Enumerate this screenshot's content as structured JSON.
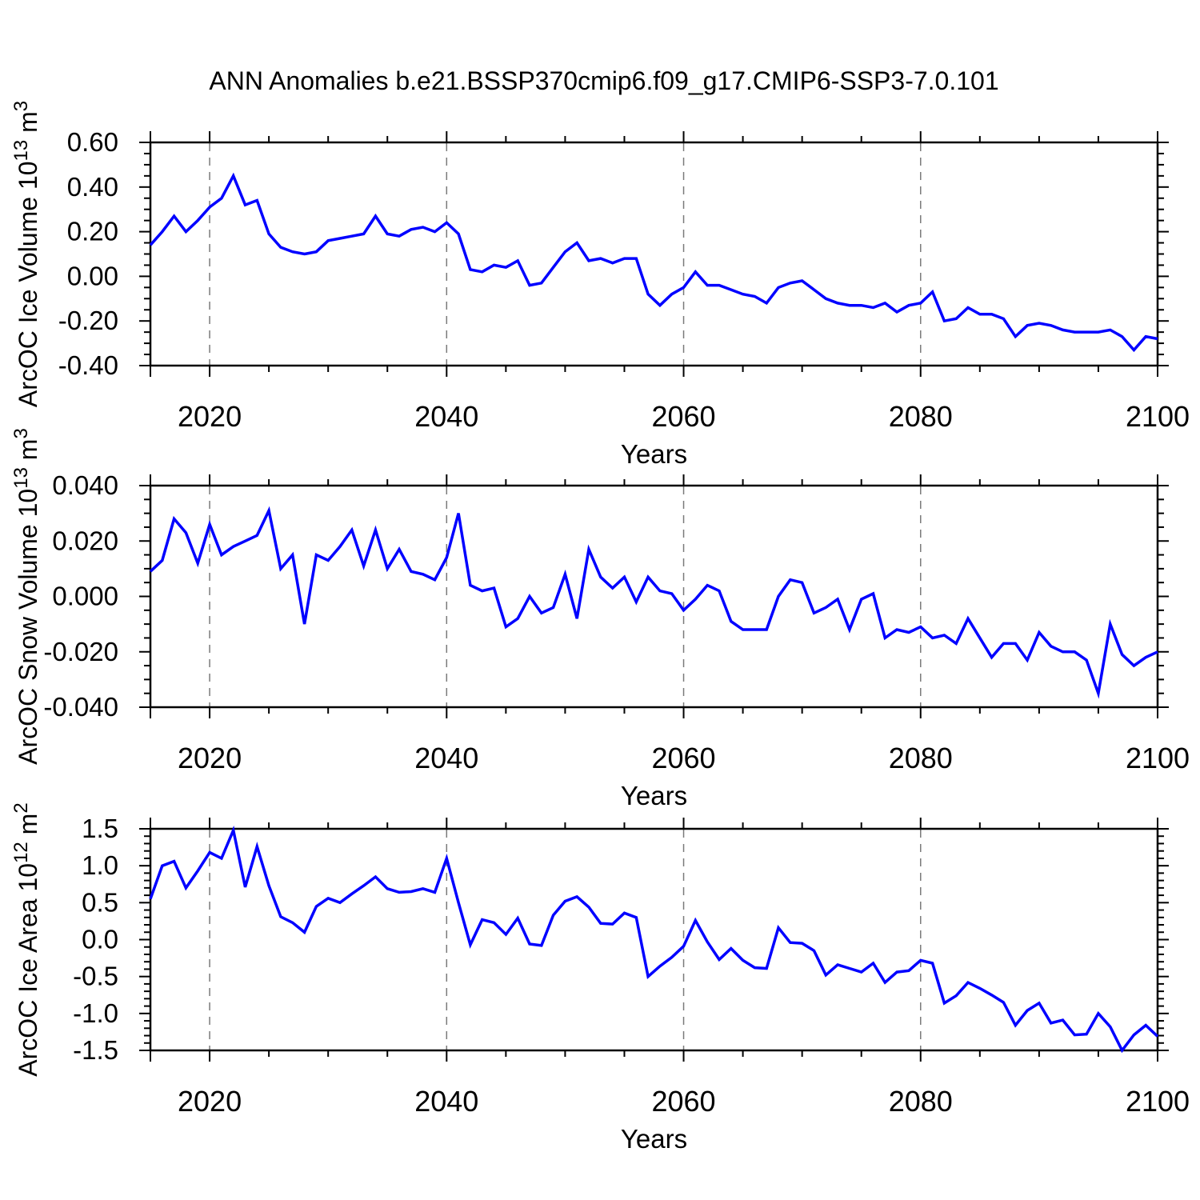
{
  "title": "ANN Anomalies b.e21.BSSP370cmip6.f09_g17.CMIP6-SSP3-7.0.101",
  "style": {
    "background": "#ffffff",
    "line_color": "#0000ff",
    "axis_color": "#000000",
    "grid_color": "#7a7a7a"
  },
  "chart_data": [
    {
      "type": "line",
      "panel": "ice-volume",
      "ylabel_plain": "ArcOC Ice Volume 10^13 m^3",
      "ylabel_segments": [
        {
          "t": "ArcOC Ice Volume 10"
        },
        {
          "t": "13",
          "sup": true
        },
        {
          "t": " m"
        },
        {
          "t": "3",
          "sup": true
        }
      ],
      "xlabel": "Years",
      "x_start": 2015,
      "x_end": 2100,
      "ylim": [
        -0.4,
        0.6
      ],
      "ytick_major": 0.2,
      "ytick_minor": 0.05,
      "ytick_decimals": 2,
      "xticks_labeled": [
        2020,
        2040,
        2060,
        2080,
        2100
      ],
      "xtick_minor_step": 5,
      "gridlines_x": [
        2020,
        2040,
        2060,
        2080
      ],
      "grid_on": true,
      "legend": "none",
      "values": [
        0.14,
        0.2,
        0.27,
        0.2,
        0.25,
        0.31,
        0.35,
        0.45,
        0.32,
        0.34,
        0.19,
        0.13,
        0.11,
        0.1,
        0.11,
        0.16,
        0.17,
        0.18,
        0.19,
        0.27,
        0.19,
        0.18,
        0.21,
        0.22,
        0.2,
        0.24,
        0.19,
        0.03,
        0.02,
        0.05,
        0.04,
        0.07,
        -0.04,
        -0.03,
        0.04,
        0.11,
        0.15,
        0.07,
        0.08,
        0.06,
        0.08,
        0.08,
        -0.08,
        -0.13,
        -0.08,
        -0.05,
        0.02,
        -0.04,
        -0.04,
        -0.06,
        -0.08,
        -0.09,
        -0.12,
        -0.05,
        -0.03,
        -0.02,
        -0.06,
        -0.1,
        -0.12,
        -0.13,
        -0.13,
        -0.14,
        -0.12,
        -0.16,
        -0.13,
        -0.12,
        -0.07,
        -0.2,
        -0.19,
        -0.14,
        -0.17,
        -0.17,
        -0.19,
        -0.27,
        -0.22,
        -0.21,
        -0.22,
        -0.24,
        -0.25,
        -0.25,
        -0.25,
        -0.24,
        -0.27,
        -0.33,
        -0.27,
        -0.28
      ]
    },
    {
      "type": "line",
      "panel": "snow-volume",
      "ylabel_plain": "ArcOC Snow Volume 10^13 m^3",
      "ylabel_segments": [
        {
          "t": "ArcOC Snow Volume 10"
        },
        {
          "t": "13",
          "sup": true
        },
        {
          "t": " m"
        },
        {
          "t": "3",
          "sup": true
        }
      ],
      "xlabel": "Years",
      "x_start": 2015,
      "x_end": 2100,
      "ylim": [
        -0.04,
        0.04
      ],
      "ytick_major": 0.02,
      "ytick_minor": 0.005,
      "ytick_decimals": 3,
      "xticks_labeled": [
        2020,
        2040,
        2060,
        2080,
        2100
      ],
      "xtick_minor_step": 5,
      "gridlines_x": [
        2020,
        2040,
        2060,
        2080
      ],
      "grid_on": true,
      "legend": "none",
      "values": [
        0.009,
        0.013,
        0.028,
        0.023,
        0.012,
        0.026,
        0.015,
        0.018,
        0.02,
        0.022,
        0.031,
        0.01,
        0.015,
        -0.01,
        0.015,
        0.013,
        0.018,
        0.024,
        0.011,
        0.024,
        0.01,
        0.017,
        0.009,
        0.008,
        0.006,
        0.014,
        0.03,
        0.004,
        0.002,
        0.003,
        -0.011,
        -0.008,
        0.0,
        -0.006,
        -0.004,
        0.008,
        -0.008,
        0.017,
        0.007,
        0.003,
        0.007,
        -0.002,
        0.007,
        0.002,
        0.001,
        -0.005,
        -0.001,
        0.004,
        0.002,
        -0.009,
        -0.012,
        -0.012,
        -0.012,
        0.0,
        0.006,
        0.005,
        -0.006,
        -0.004,
        -0.001,
        -0.012,
        -0.001,
        0.001,
        -0.015,
        -0.012,
        -0.013,
        -0.011,
        -0.015,
        -0.014,
        -0.017,
        -0.008,
        -0.015,
        -0.022,
        -0.017,
        -0.017,
        -0.023,
        -0.013,
        -0.018,
        -0.02,
        -0.02,
        -0.023,
        -0.035,
        -0.01,
        -0.021,
        -0.025,
        -0.022,
        -0.02
      ]
    },
    {
      "type": "line",
      "panel": "ice-area",
      "ylabel_plain": "ArcOC Ice Area 10^12 m^2",
      "ylabel_segments": [
        {
          "t": "ArcOC Ice Area 10"
        },
        {
          "t": "12",
          "sup": true
        },
        {
          "t": " m"
        },
        {
          "t": "2",
          "sup": true
        }
      ],
      "xlabel": "Years",
      "x_start": 2015,
      "x_end": 2100,
      "ylim": [
        -1.5,
        1.5
      ],
      "ytick_major": 0.5,
      "ytick_minor": 0.1,
      "ytick_decimals": 1,
      "xticks_labeled": [
        2020,
        2040,
        2060,
        2080,
        2100
      ],
      "xtick_minor_step": 5,
      "gridlines_x": [
        2020,
        2040,
        2060,
        2080
      ],
      "grid_on": true,
      "legend": "none",
      "values": [
        0.55,
        1.0,
        1.06,
        0.7,
        0.93,
        1.18,
        1.1,
        1.48,
        0.71,
        1.26,
        0.73,
        0.31,
        0.23,
        0.1,
        0.45,
        0.56,
        0.5,
        0.62,
        0.73,
        0.85,
        0.69,
        0.64,
        0.65,
        0.69,
        0.64,
        1.1,
        0.5,
        -0.07,
        0.27,
        0.23,
        0.07,
        0.29,
        -0.06,
        -0.08,
        0.33,
        0.52,
        0.58,
        0.44,
        0.22,
        0.21,
        0.36,
        0.3,
        -0.5,
        -0.36,
        -0.24,
        -0.09,
        0.26,
        -0.03,
        -0.27,
        -0.12,
        -0.28,
        -0.38,
        -0.39,
        0.16,
        -0.04,
        -0.05,
        -0.15,
        -0.48,
        -0.34,
        -0.39,
        -0.44,
        -0.32,
        -0.58,
        -0.44,
        -0.42,
        -0.28,
        -0.32,
        -0.86,
        -0.76,
        -0.58,
        -0.66,
        -0.75,
        -0.85,
        -1.16,
        -0.96,
        -0.86,
        -1.13,
        -1.09,
        -1.29,
        -1.28,
        -1.0,
        -1.18,
        -1.5,
        -1.29,
        -1.16,
        -1.31
      ]
    }
  ],
  "layout_note": "three stacked annual time-series panels, 2015-2100"
}
